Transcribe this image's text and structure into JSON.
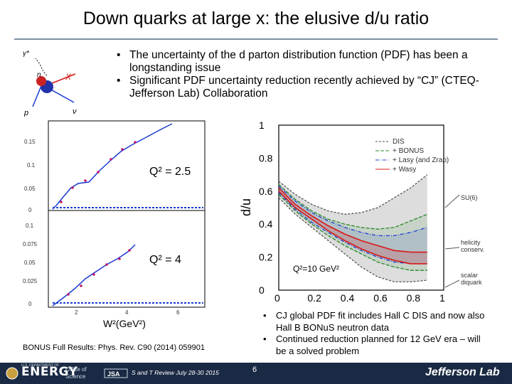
{
  "title": "Down quarks at large x: the elusive d/u ratio",
  "top_bullets": [
    "The uncertainty of the d parton distribution function (PDF) has been a longstanding issue",
    "Significant PDF uncertainty reduction recently achieved by “CJ” (CTEQ-Jefferson Lab) Collaboration"
  ],
  "diagram": {
    "labels": [
      "γ*",
      "n",
      "X",
      "p",
      "ν"
    ]
  },
  "left_plot": {
    "top_panel": {
      "label": "Q² = 2.5",
      "yticks": [
        "0.15",
        "0.1",
        "0.05",
        "0"
      ]
    },
    "bottom_panel": {
      "label": "Q² = 4",
      "yticks": [
        "0.1",
        "0.075",
        "0.05",
        "0.025",
        "0"
      ]
    },
    "xticks": [
      "2",
      "4",
      "6"
    ],
    "xlabel": "W²(GeV²)"
  },
  "chart_data": {
    "type": "line",
    "xlabel": "",
    "ylabel": "d/u",
    "xlim": [
      0,
      1
    ],
    "ylim": [
      0,
      1
    ],
    "xticks": [
      "0",
      "0.2",
      "0.4",
      "0.6",
      "0.8",
      "1"
    ],
    "yticks": [
      "0",
      "0.2",
      "0.4",
      "0.6",
      "0.8",
      "1"
    ],
    "legend": [
      "DIS",
      "+ BONUS",
      "+ Lasy (and Zrap)",
      "+ Wasy"
    ],
    "annotation": "Q²=10 GeV²",
    "side_labels": [
      "SU(6)",
      "helicity conserv.",
      "scalar diquark"
    ],
    "x": [
      0.0,
      0.1,
      0.2,
      0.3,
      0.4,
      0.5,
      0.6,
      0.7,
      0.8,
      0.9
    ],
    "series": [
      {
        "name": "DIS upper",
        "values": [
          0.66,
          0.58,
          0.52,
          0.48,
          0.46,
          0.47,
          0.5,
          0.56,
          0.62,
          0.7
        ]
      },
      {
        "name": "DIS lower",
        "values": [
          0.56,
          0.46,
          0.38,
          0.3,
          0.22,
          0.14,
          0.08,
          0.05,
          0.05,
          0.06
        ]
      },
      {
        "name": "BONUS upper",
        "values": [
          0.64,
          0.55,
          0.48,
          0.43,
          0.4,
          0.38,
          0.37,
          0.38,
          0.42,
          0.46
        ]
      },
      {
        "name": "BONUS lower",
        "values": [
          0.58,
          0.48,
          0.4,
          0.33,
          0.27,
          0.22,
          0.17,
          0.14,
          0.12,
          0.12
        ]
      },
      {
        "name": "Lasy upper",
        "values": [
          0.63,
          0.54,
          0.47,
          0.42,
          0.38,
          0.35,
          0.33,
          0.33,
          0.35,
          0.38
        ]
      },
      {
        "name": "Lasy lower",
        "values": [
          0.59,
          0.49,
          0.41,
          0.35,
          0.29,
          0.24,
          0.2,
          0.17,
          0.16,
          0.16
        ]
      },
      {
        "name": "Wasy upper",
        "values": [
          0.62,
          0.52,
          0.45,
          0.39,
          0.34,
          0.3,
          0.27,
          0.24,
          0.23,
          0.23
        ]
      },
      {
        "name": "Wasy lower",
        "values": [
          0.6,
          0.5,
          0.43,
          0.36,
          0.3,
          0.25,
          0.21,
          0.18,
          0.16,
          0.16
        ]
      }
    ],
    "reference_lines": [
      {
        "name": "SU(6)",
        "y": 0.5
      },
      {
        "name": "helicity conserv.",
        "y": 0.2
      },
      {
        "name": "scalar diquark",
        "y": 0.0
      }
    ]
  },
  "side_bullets": [
    "CJ global PDF fit includes Hall C DIS and now also Hall B BONuS neutron data",
    "Continued reduction planned for 12 GeV era – will be a solved problem"
  ],
  "reference": "BONUS Full Results: Phys. Rev. C90 (2014) 059901",
  "footer": {
    "left_logo": "ENERGY",
    "left_small": "U.S. DEPARTMENT OF",
    "office": "Office of Science",
    "center": "S and T Review July 28-30  2015",
    "page": "6",
    "right_logo": "Jefferson Lab"
  },
  "colors": {
    "dis": "#555555",
    "bonus": "#2a8a2a",
    "lasy": "#1a3bd0",
    "wasy": "#d81818",
    "footer_bg": "#1a2a44"
  }
}
